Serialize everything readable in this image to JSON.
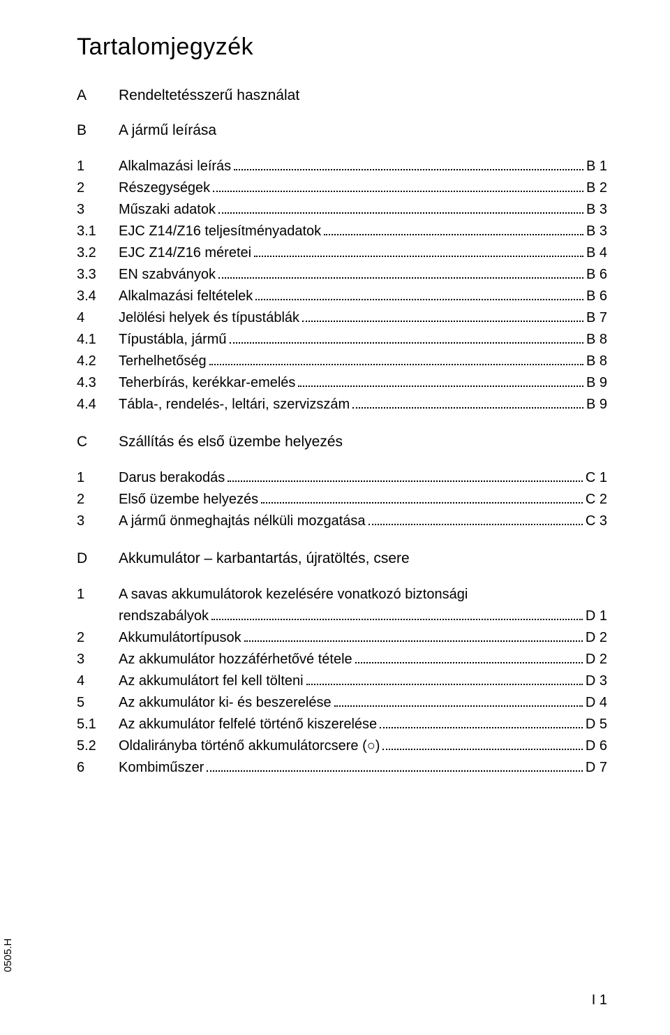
{
  "title": "Tartalomjegyzék",
  "sections": [
    {
      "label": "A",
      "heading": "Rendeltetésszerű használat",
      "entries": []
    },
    {
      "label": "B",
      "heading": "A jármű leírása",
      "entries": [
        {
          "label": "1",
          "text": "Alkalmazási leírás",
          "page": "B  1"
        },
        {
          "label": "2",
          "text": "Részegységek",
          "page": "B  2"
        },
        {
          "label": "3",
          "text": "Műszaki adatok",
          "page": "B  3"
        },
        {
          "label": "3.1",
          "text": "EJC Z14/Z16 teljesítményadatok",
          "page": "B  3"
        },
        {
          "label": "3.2",
          "text": "EJC Z14/Z16 méretei",
          "page": "B  4"
        },
        {
          "label": "3.3",
          "text": "EN szabványok",
          "page": "B  6"
        },
        {
          "label": "3.4",
          "text": "Alkalmazási feltételek",
          "page": "B  6"
        },
        {
          "label": "4",
          "text": "Jelölési helyek és típustáblák",
          "page": "B  7"
        },
        {
          "label": "4.1",
          "text": "Típustábla, jármű",
          "page": "B  8"
        },
        {
          "label": "4.2",
          "text": "Terhelhetőség",
          "page": "B  8"
        },
        {
          "label": "4.3",
          "text": "Teherbírás, kerékkar-emelés",
          "page": "B  9"
        },
        {
          "label": "4.4",
          "text": "Tábla-, rendelés-, leltári, szervizszám",
          "page": "B  9"
        }
      ]
    },
    {
      "label": "C",
      "heading": "Szállítás és első üzembe helyezés",
      "entries": [
        {
          "label": "1",
          "text": "Darus berakodás",
          "page": "C  1"
        },
        {
          "label": "2",
          "text": "Első üzembe helyezés",
          "page": "C  2"
        },
        {
          "label": "3",
          "text": "A jármű önmeghajtás nélküli mozgatása",
          "page": "C  3"
        }
      ]
    },
    {
      "label": "D",
      "heading": "Akkumulátor – karbantartás, újratöltés, csere",
      "entries": [
        {
          "label": "1",
          "text": "A savas akkumulátorok kezelésére vonatkozó biztonsági",
          "text2": "rendszabályok",
          "page": "D  1",
          "wrap": true
        },
        {
          "label": "2",
          "text": "Akkumulátortípusok",
          "page": "D  2"
        },
        {
          "label": "3",
          "text": "Az akkumulátor hozzáférhetővé tétele",
          "page": "D  2"
        },
        {
          "label": "4",
          "text": "Az akkumulátort fel kell tölteni",
          "page": "D  3"
        },
        {
          "label": "5",
          "text": "Az akkumulátor ki- és beszerelése",
          "page": "D  4"
        },
        {
          "label": "5.1",
          "text": "Az akkumulátor felfelé történő kiszerelése",
          "page": "D  5"
        },
        {
          "label": "5.2",
          "text": "Oldalirányba történő akkumulátorcsere (○)",
          "page": "D  6"
        },
        {
          "label": "6",
          "text": "Kombiműszer",
          "page": "D  7"
        }
      ]
    }
  ],
  "footer_left": "0505.H",
  "footer_right": "I 1"
}
